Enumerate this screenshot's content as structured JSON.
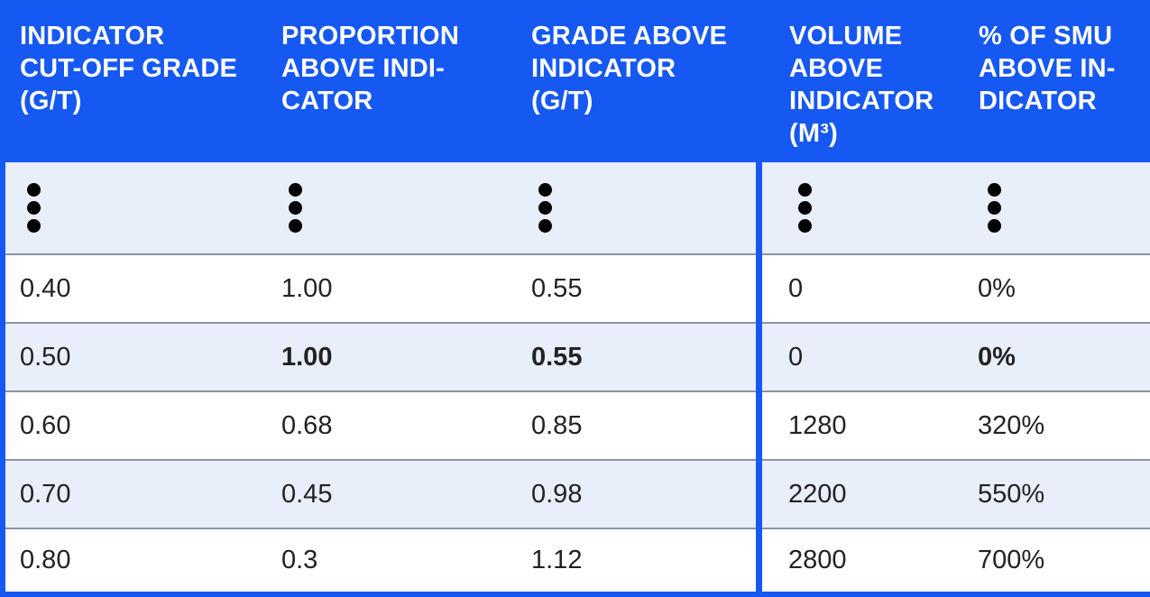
{
  "headers": [
    "INDICATOR\nCUT-OFF GRADE\n(G/T)",
    "PROPORTION\nABOVE INDI-\nCATOR",
    "GRADE ABOVE\nINDICATOR\n(G/T)",
    "VOLUME\nABOVE\nINDICATOR\n(M³)",
    "% OF SMU\nABOVE IN-\nDICATOR"
  ],
  "rows": [
    {
      "c0": "0.40",
      "c1": "1.00",
      "c2": "0.55",
      "c3": "0",
      "c4": "0%"
    },
    {
      "c0": "0.50",
      "c1": "1.00",
      "c2": "0.55",
      "c3": "0",
      "c4": "0%"
    },
    {
      "c0": "0.60",
      "c1": "0.68",
      "c2": "0.85",
      "c3": "1280",
      "c4": "320%"
    },
    {
      "c0": "0.70",
      "c1": "0.45",
      "c2": "0.98",
      "c3": "2200",
      "c4": "550%"
    },
    {
      "c0": "0.80",
      "c1": "0.3",
      "c2": "1.12",
      "c3": "2800",
      "c4": "700%"
    }
  ],
  "bold_cells": {
    "row_index": 1,
    "columns": [
      "c1",
      "c2",
      "c4"
    ]
  },
  "ellipsis_icon": "vertical-ellipsis",
  "colors": {
    "header_bg": "#1658F2",
    "alt_row_bg": "#E9EFFA",
    "row_border": "#8B93A3"
  }
}
